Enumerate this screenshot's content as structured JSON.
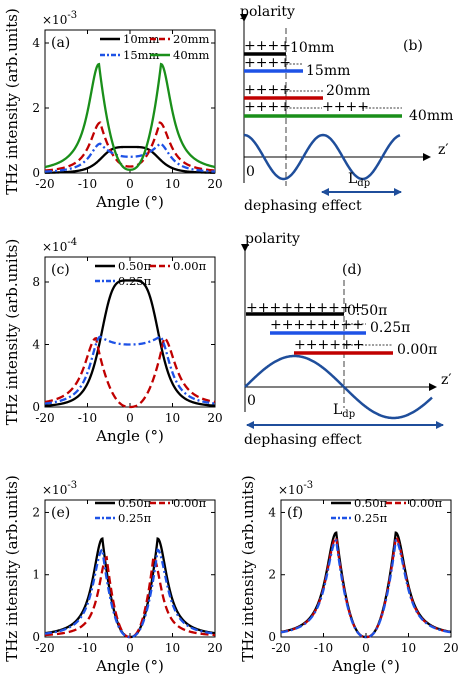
{
  "colors": {
    "black": "#000000",
    "red": "#c00000",
    "blue": "#1e52e6",
    "green": "#1a8f1a",
    "navy": "#1f4e9b",
    "gray": "#808080"
  },
  "chart_data": [
    {
      "id": "a",
      "type": "line",
      "panel_label": "(a)",
      "exponent": "×10",
      "exponent_power": "-3",
      "xlabel": "Angle (°)",
      "ylabel": "THz intensity (arb.units)",
      "xlim": [
        -20,
        20
      ],
      "ylim": [
        0,
        4.4
      ],
      "xticks": [
        "-20",
        "-10",
        "0",
        "10",
        "20"
      ],
      "yticks": [
        "0",
        "2",
        "4"
      ],
      "series": [
        {
          "name": "10mm",
          "color": "black",
          "style": "solid",
          "peak_angle": 0,
          "peak_value": 0.8,
          "center_value": 0.8
        },
        {
          "name": "20mm",
          "color": "red",
          "style": "dashed",
          "peak_angle": 7,
          "peak_value": 1.55,
          "center_value": 0.2
        },
        {
          "name": "15mm",
          "color": "blue",
          "style": "dashdot",
          "peak_angle": 7,
          "peak_value": 0.9,
          "center_value": 0.5
        },
        {
          "name": "40mm",
          "color": "green",
          "style": "solid",
          "peak_angle": 7.3,
          "peak_value": 3.35,
          "center_value": 0.1
        }
      ]
    },
    {
      "id": "c",
      "type": "line",
      "panel_label": "(c)",
      "exponent": "×10",
      "exponent_power": "-4",
      "xlabel": "Angle (°)",
      "ylabel": "THz intensity (arb.units)",
      "xlim": [
        -20,
        20
      ],
      "ylim": [
        0,
        9.6
      ],
      "xticks": [
        "-20",
        "-10",
        "0",
        "10",
        "20"
      ],
      "yticks": [
        "0",
        "4",
        "8"
      ],
      "series": [
        {
          "name": "0.50π",
          "color": "black",
          "style": "solid",
          "peak_angle": 0,
          "peak_value": 8.1,
          "center_value": 8.1
        },
        {
          "name": "0.00π",
          "color": "red",
          "style": "dashed",
          "peak_angle": 8,
          "peak_value": 4.4,
          "center_value": 0.0
        },
        {
          "name": "0.25π",
          "color": "blue",
          "style": "dashdot",
          "peak_angle": 7,
          "peak_value": 4.5,
          "center_value": 4.0
        }
      ]
    },
    {
      "id": "e",
      "type": "line",
      "panel_label": "(e)",
      "exponent": "×10",
      "exponent_power": "-3",
      "xlabel": "Angle (°)",
      "ylabel": "THz intensity (arb.units)",
      "xlim": [
        -20,
        20
      ],
      "ylim": [
        0,
        2.2
      ],
      "xticks": [
        "-20",
        "-10",
        "0",
        "10",
        "20"
      ],
      "yticks": [
        "0",
        "1",
        "2"
      ],
      "series": [
        {
          "name": "0.50π",
          "color": "black",
          "style": "solid",
          "peak_angle": 6.5,
          "peak_value": 1.58,
          "center_value": 0.0
        },
        {
          "name": "0.00π",
          "color": "red",
          "style": "dashed",
          "peak_angle": 5.5,
          "peak_value": 1.28,
          "center_value": 0.0
        },
        {
          "name": "0.25π",
          "color": "blue",
          "style": "dashdot",
          "peak_angle": 6.5,
          "peak_value": 1.4,
          "center_value": 0.0
        }
      ]
    },
    {
      "id": "f",
      "type": "line",
      "panel_label": "(f)",
      "exponent": "×10",
      "exponent_power": "-3",
      "xlabel": "Angle (°)",
      "ylabel": "THz intensity (arb.units)",
      "xlim": [
        -20,
        20
      ],
      "ylim": [
        0,
        4.4
      ],
      "xticks": [
        "-20",
        "-10",
        "0",
        "10",
        "20"
      ],
      "yticks": [
        "0",
        "2",
        "4"
      ],
      "series": [
        {
          "name": "0.50π",
          "color": "black",
          "style": "solid",
          "peak_angle": 7,
          "peak_value": 3.35,
          "center_value": 0.0
        },
        {
          "name": "0.00π",
          "color": "red",
          "style": "dashed",
          "peak_angle": 7,
          "peak_value": 3.2,
          "center_value": 0.0
        },
        {
          "name": "0.25π",
          "color": "blue",
          "style": "dashdot",
          "peak_angle": 7,
          "peak_value": 3.1,
          "center_value": 0.0
        }
      ]
    }
  ],
  "schematic_b": {
    "panel_label": "(b)",
    "polarity_label": "polarity",
    "axis_label": "z′",
    "origin_label": "0",
    "length_label": "L",
    "length_sub": "dp",
    "effect_label": "dephasing effect",
    "rows": [
      {
        "plus": "++++",
        "extra_plus": "",
        "name": "10mm",
        "color": "black"
      },
      {
        "plus": "++++",
        "extra_plus": "",
        "name": "15mm",
        "color": "blue"
      },
      {
        "plus": "++++",
        "extra_plus": "",
        "name": "20mm",
        "color": "red"
      },
      {
        "plus": "++++",
        "extra_plus": "++++",
        "name": "40mm",
        "color": "green"
      }
    ]
  },
  "schematic_d": {
    "panel_label": "(d)",
    "polarity_label": "polarity",
    "axis_label": "z′",
    "origin_label": "0",
    "length_label": "L",
    "length_sub": "dp",
    "effect_label": "dephasing effect",
    "rows": [
      {
        "plus": "++++++++++",
        "name": "0.50π",
        "color": "black"
      },
      {
        "plus": "++++++++",
        "name": "0.25π",
        "color": "blue"
      },
      {
        "plus": "++++++",
        "name": "0.00π",
        "color": "red"
      }
    ]
  }
}
